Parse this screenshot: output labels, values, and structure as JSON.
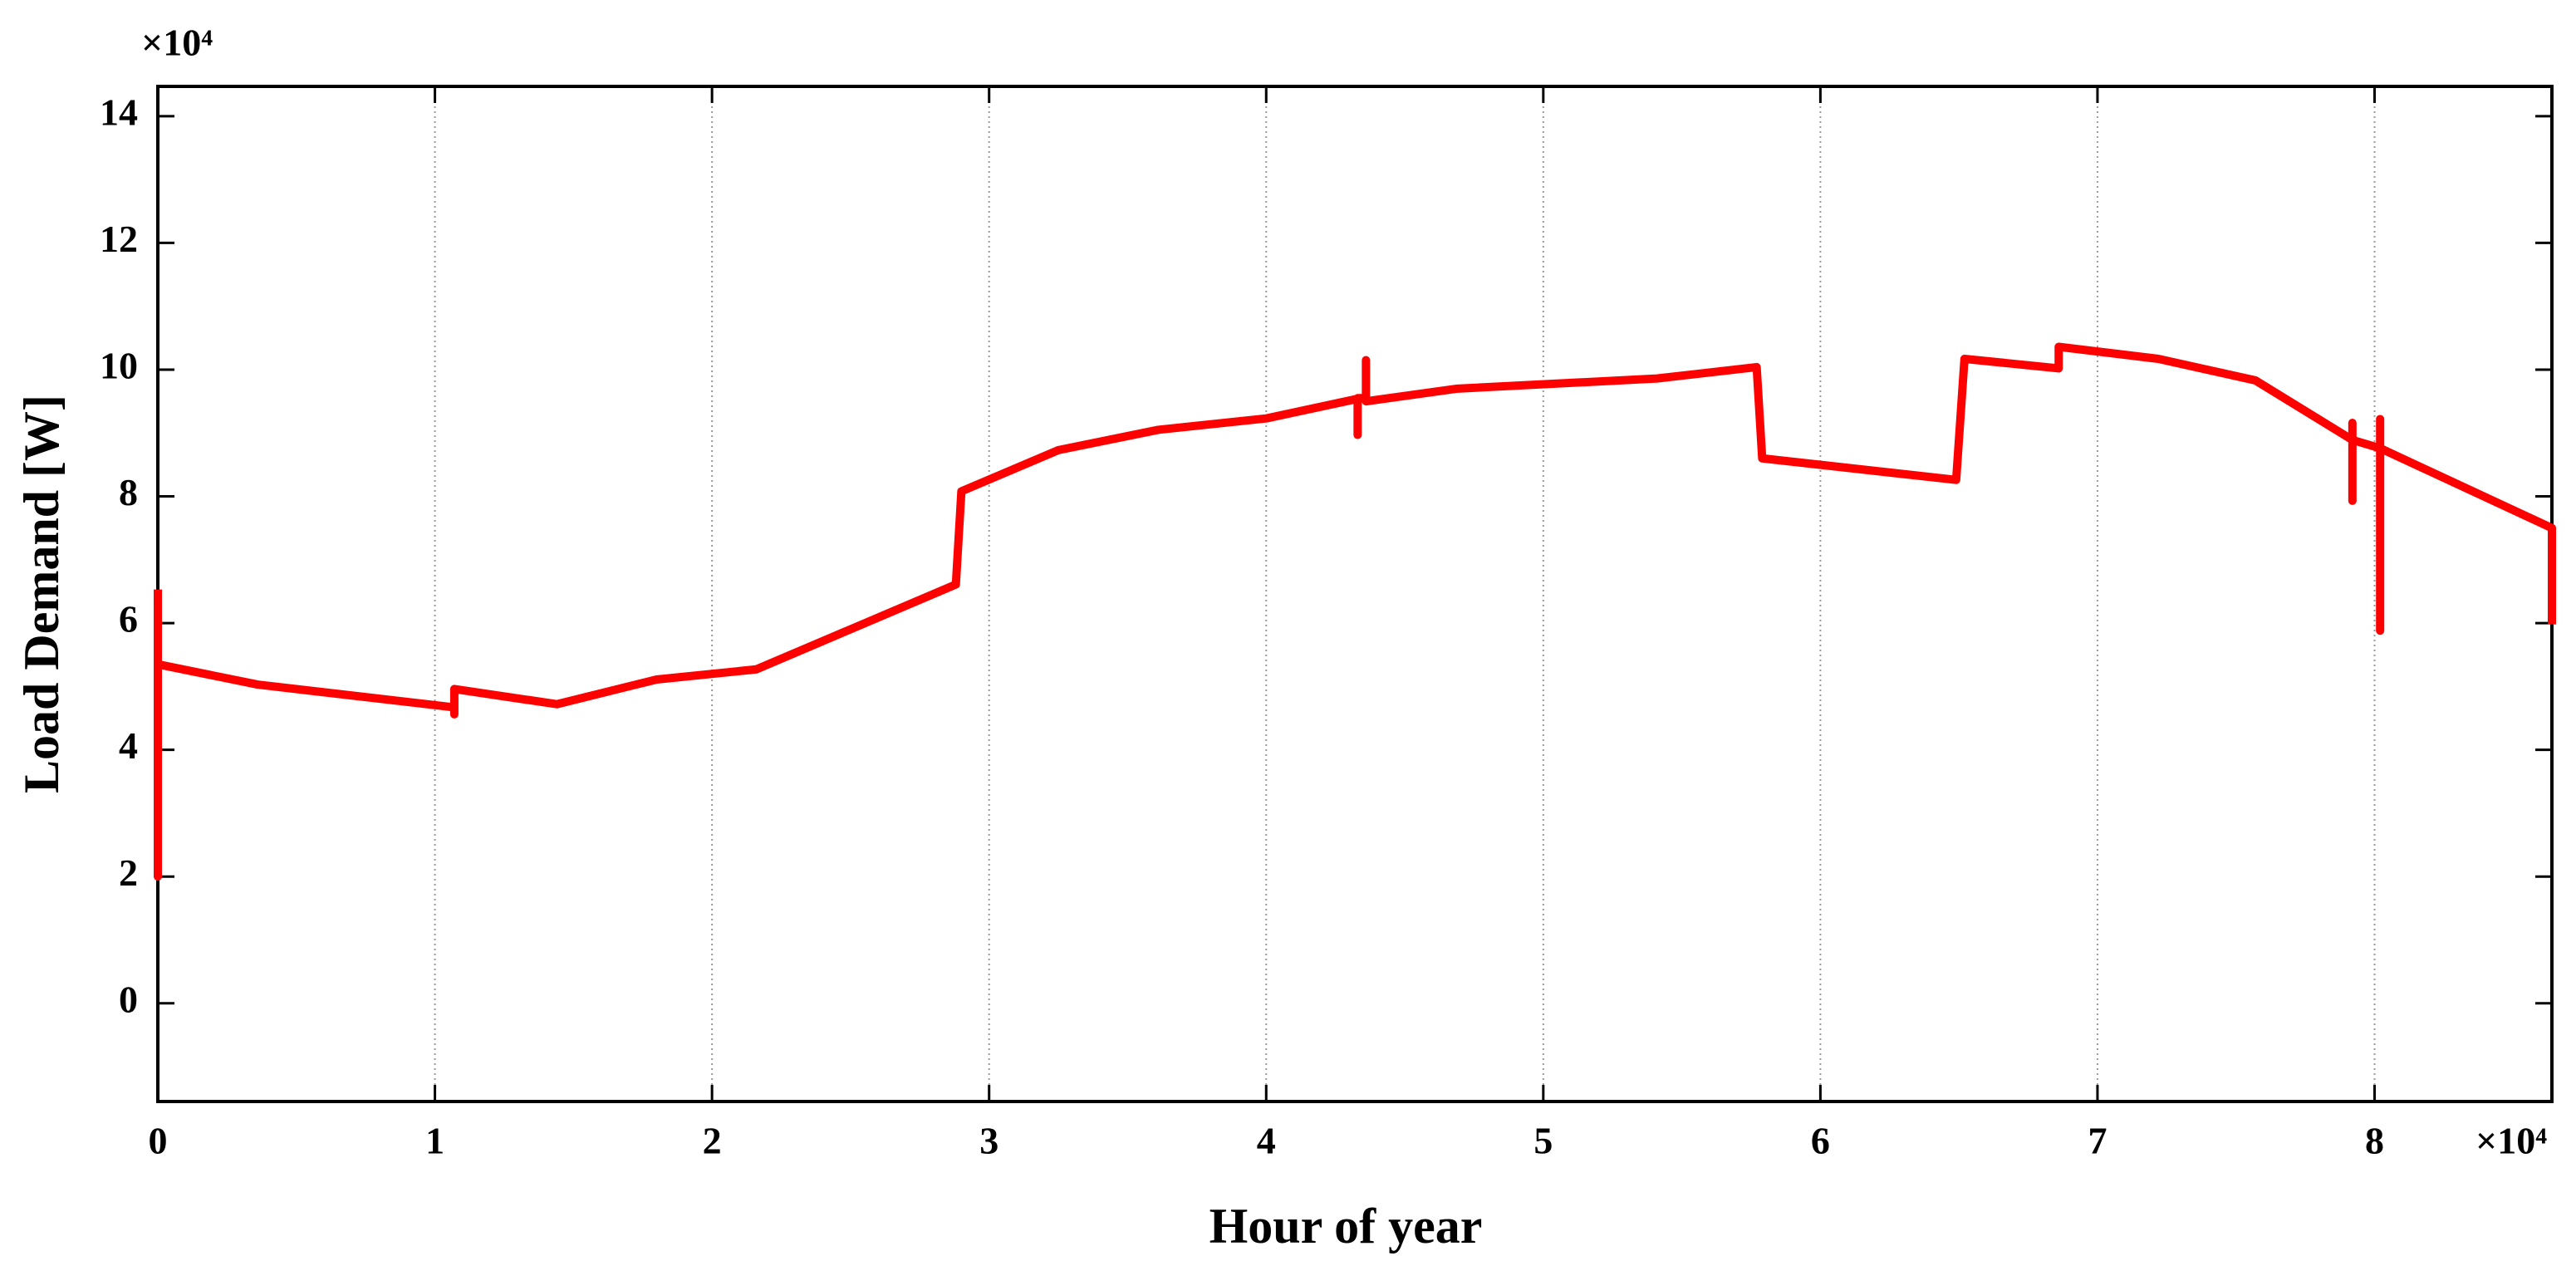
{
  "chart_data": {
    "type": "line",
    "x_label": "Hour of  year",
    "y_label": "Load Demand [W]",
    "x_multiplier": "×10⁴",
    "y_multiplier": "×10⁴",
    "xlim": [
      0,
      86400
    ],
    "ylim": [
      -15500,
      144700
    ],
    "xticks": [
      {
        "value": 0,
        "label": "0"
      },
      {
        "value": 10000,
        "label": "1"
      },
      {
        "value": 20000,
        "label": "2"
      },
      {
        "value": 30000,
        "label": "3"
      },
      {
        "value": 40000,
        "label": "4"
      },
      {
        "value": 50000,
        "label": "5"
      },
      {
        "value": 60000,
        "label": "6"
      },
      {
        "value": 70000,
        "label": "7"
      },
      {
        "value": 80000,
        "label": "8"
      }
    ],
    "yticks": [
      {
        "value": 0,
        "label": "0"
      },
      {
        "value": 20000,
        "label": "2"
      },
      {
        "value": 40000,
        "label": "4"
      },
      {
        "value": 60000,
        "label": "6"
      },
      {
        "value": 80000,
        "label": "8"
      },
      {
        "value": 100000,
        "label": "10"
      },
      {
        "value": 120000,
        "label": "12"
      },
      {
        "value": 140000,
        "label": "14"
      }
    ],
    "grid": "x",
    "series": [
      {
        "color": "#ff0000",
        "x": [
          0,
          0,
          0,
          3600,
          10700,
          10700,
          10700,
          14400,
          18000,
          21600,
          28800,
          29000,
          32500,
          36100,
          40000,
          43300,
          43300,
          43300,
          43600,
          43600,
          43600,
          46900,
          54100,
          57700,
          57900,
          64900,
          65200,
          68600,
          68600,
          72200,
          75700,
          79200,
          79200,
          79200,
          79200,
          80200,
          80200,
          80200,
          80200,
          86400,
          86400
        ],
        "values": [
          65300,
          20000,
          53500,
          50300,
          46700,
          45600,
          49600,
          47200,
          51100,
          52700,
          66100,
          80800,
          87300,
          90500,
          92300,
          95400,
          89700,
          95500,
          95500,
          101500,
          95000,
          97000,
          98600,
          100400,
          86000,
          82600,
          101700,
          100200,
          103600,
          101700,
          98300,
          88900,
          91600,
          79300,
          88900,
          87600,
          92200,
          58800,
          87600,
          75000,
          59800
        ]
      }
    ]
  }
}
